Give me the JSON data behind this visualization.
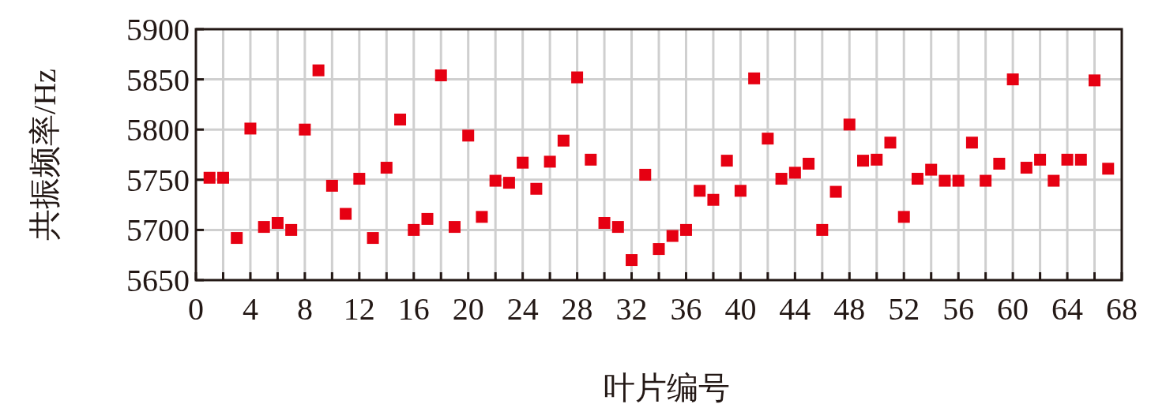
{
  "chart_data": {
    "type": "scatter",
    "xlabel": "叶片编号",
    "ylabel": "共振频率/Hz",
    "marker": "square",
    "grid": true,
    "xlim": [
      0,
      68
    ],
    "ylim": [
      5650,
      5900
    ],
    "xticks": [
      0,
      {
        "value": 2,
        "label": null
      },
      4,
      {
        "value": 6,
        "label": null
      },
      8,
      {
        "value": 10,
        "label": null
      },
      12,
      {
        "value": 14,
        "label": null
      },
      16,
      {
        "value": 18,
        "label": null
      },
      20,
      {
        "value": 22,
        "label": null
      },
      24,
      {
        "value": 26,
        "label": null
      },
      28,
      {
        "value": 30,
        "label": null
      },
      32,
      {
        "value": 34,
        "label": null
      },
      36,
      {
        "value": 38,
        "label": null
      },
      40,
      {
        "value": 42,
        "label": null
      },
      44,
      {
        "value": 46,
        "label": null
      },
      48,
      {
        "value": 50,
        "label": null
      },
      52,
      {
        "value": 54,
        "label": null
      },
      56,
      {
        "value": 58,
        "label": null
      },
      60,
      {
        "value": 62,
        "label": null
      },
      64,
      {
        "value": 66,
        "label": null
      },
      68
    ],
    "yticks": [
      5650,
      5700,
      5750,
      5800,
      5850,
      5900
    ],
    "x": [
      1,
      2,
      3,
      4,
      5,
      6,
      7,
      8,
      9,
      10,
      11,
      12,
      13,
      14,
      15,
      16,
      17,
      18,
      19,
      20,
      21,
      22,
      23,
      24,
      25,
      26,
      27,
      28,
      29,
      30,
      31,
      32,
      33,
      34,
      35,
      36,
      37,
      38,
      39,
      40,
      41,
      42,
      43,
      44,
      45,
      46,
      47,
      48,
      49,
      50,
      51,
      52,
      53,
      54,
      55,
      56,
      57,
      58,
      59,
      60,
      61,
      62,
      63,
      64,
      65,
      66,
      67
    ],
    "series": [
      {
        "color": "#e60012",
        "values": [
          5752,
          5752,
          5692,
          5801,
          5703,
          5707,
          5700,
          5800,
          5859,
          5744,
          5716,
          5751,
          5692,
          5762,
          5810,
          5700,
          5711,
          5854,
          5703,
          5794,
          5713,
          5749,
          5747,
          5767,
          5741,
          5768,
          5789,
          5852,
          5770,
          5707,
          5703,
          5670,
          5755,
          5681,
          5694,
          5700,
          5739,
          5730,
          5769,
          5739,
          5851,
          5791,
          5751,
          5757,
          5766,
          5700,
          5738,
          5805,
          5769,
          5770,
          5787,
          5713,
          5751,
          5760,
          5749,
          5749,
          5787,
          5749,
          5766,
          5850,
          5762,
          5770,
          5749,
          5770,
          5770,
          5849,
          5761
        ]
      }
    ]
  }
}
